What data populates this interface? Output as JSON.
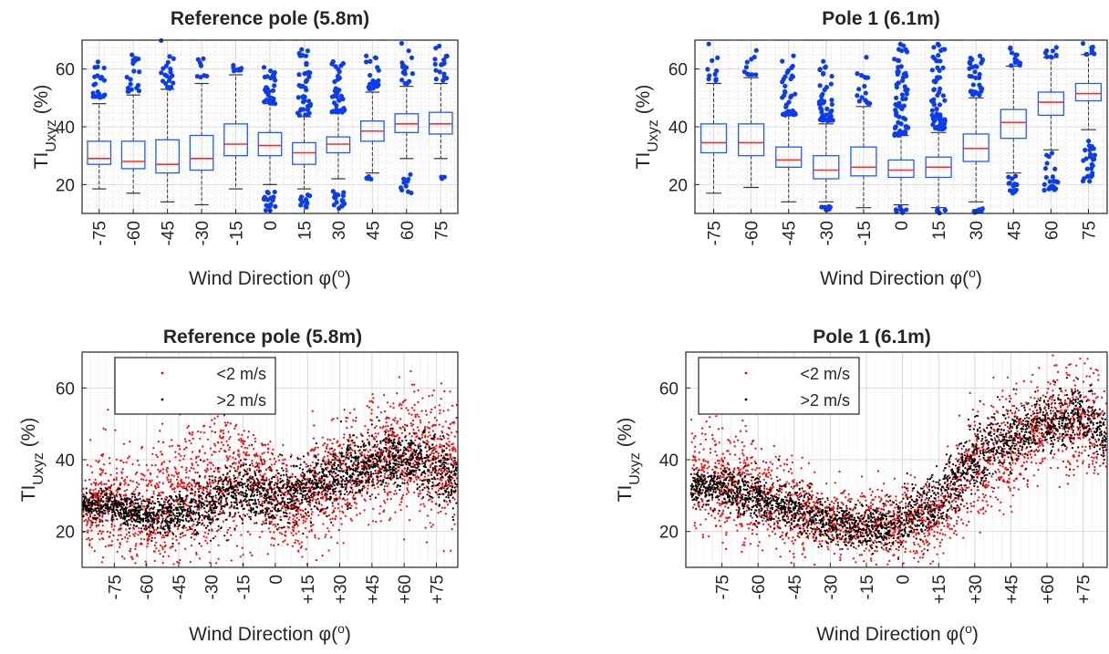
{
  "colors": {
    "box_edge": "#1a5cff",
    "median": "#ff2a2a",
    "outlier": "#0a3cf0",
    "whisker": "#333333",
    "below": "#ff0000",
    "above": "#000000",
    "grid": "#d9d9d9",
    "minor_grid": "#bfbfbf"
  },
  "chart_data": [
    {
      "type": "box",
      "title": "Reference pole (5.8m)",
      "xlabel": "Wind Direction φ(°)",
      "ylabel": "TI_Uxyz (%)",
      "categories": [
        "-75",
        "-60",
        "-45",
        "-30",
        "-15",
        "0",
        "15",
        "30",
        "45",
        "60",
        "75"
      ],
      "yticks": [
        20,
        40,
        60
      ],
      "ylim": [
        10,
        70
      ],
      "grid": true,
      "boxes": [
        {
          "q1": 27,
          "median": 29,
          "q3": 35,
          "low": 18.5,
          "high": 48,
          "outliers": {
            "ranges": [
              [
                50,
                63
              ]
            ],
            "count": 22
          }
        },
        {
          "q1": 25.5,
          "median": 28,
          "q3": 35,
          "low": 17,
          "high": 51,
          "outliers": {
            "ranges": [
              [
                52,
                65
              ]
            ],
            "count": 20
          }
        },
        {
          "q1": 24,
          "median": 27,
          "q3": 35.5,
          "low": 14,
          "high": 53,
          "outliers": {
            "ranges": [
              [
                53,
                70
              ]
            ],
            "count": 20
          }
        },
        {
          "q1": 25,
          "median": 29,
          "q3": 37,
          "low": 13,
          "high": 55,
          "outliers": {
            "ranges": [
              [
                57,
                64
              ]
            ],
            "count": 8
          }
        },
        {
          "q1": 30,
          "median": 34,
          "q3": 41,
          "low": 18.5,
          "high": 58,
          "outliers": {
            "ranges": [
              [
                59,
                63
              ]
            ],
            "count": 8
          }
        },
        {
          "q1": 30,
          "median": 33.5,
          "q3": 38,
          "low": 20,
          "high": 48,
          "outliers": {
            "ranges": [
              [
                48,
                62
              ],
              [
                11,
                19
              ]
            ],
            "count": 48
          }
        },
        {
          "q1": 27,
          "median": 31,
          "q3": 34.5,
          "low": 18.5,
          "high": 43.5,
          "outliers": {
            "ranges": [
              [
                44,
                70
              ],
              [
                12,
                18
              ]
            ],
            "count": 55
          }
        },
        {
          "q1": 31,
          "median": 34,
          "q3": 36.5,
          "low": 22,
          "high": 45,
          "outliers": {
            "ranges": [
              [
                45,
                64
              ],
              [
                11,
                20
              ]
            ],
            "count": 55
          }
        },
        {
          "q1": 35,
          "median": 38.5,
          "q3": 42,
          "low": 24,
          "high": 52,
          "outliers": {
            "ranges": [
              [
                53,
                66
              ],
              [
                21,
                23
              ]
            ],
            "count": 24
          }
        },
        {
          "q1": 38,
          "median": 41,
          "q3": 44.5,
          "low": 29,
          "high": 54,
          "outliers": {
            "ranges": [
              [
                55,
                69
              ],
              [
                17,
                26
              ]
            ],
            "count": 26
          }
        },
        {
          "q1": 37.5,
          "median": 41,
          "q3": 45,
          "low": 29,
          "high": 55,
          "outliers": {
            "ranges": [
              [
                56,
                68
              ],
              [
                22,
                23
              ]
            ],
            "count": 20
          }
        }
      ]
    },
    {
      "type": "box",
      "title": "Pole 1 (6.1m)",
      "xlabel": "Wind Direction φ(°)",
      "ylabel": "TI_Uxyz (%)",
      "categories": [
        "-75",
        "-60",
        "-45",
        "-30",
        "-15",
        "0",
        "15",
        "30",
        "45",
        "60",
        "75"
      ],
      "yticks": [
        20,
        40,
        60
      ],
      "ylim": [
        10,
        70
      ],
      "grid": true,
      "boxes": [
        {
          "q1": 31,
          "median": 34.5,
          "q3": 41,
          "low": 17,
          "high": 55,
          "outliers": {
            "ranges": [
              [
                56,
                70
              ]
            ],
            "count": 10
          }
        },
        {
          "q1": 30,
          "median": 34.5,
          "q3": 41,
          "low": 19,
          "high": 57,
          "outliers": {
            "ranges": [
              [
                58,
                67
              ]
            ],
            "count": 10
          }
        },
        {
          "q1": 26,
          "median": 28.5,
          "q3": 33,
          "low": 14,
          "high": 44,
          "outliers": {
            "ranges": [
              [
                44,
                65
              ]
            ],
            "count": 40
          }
        },
        {
          "q1": 22,
          "median": 25,
          "q3": 30,
          "low": 14,
          "high": 41,
          "outliers": {
            "ranges": [
              [
                42,
                63
              ],
              [
                11,
                13
              ]
            ],
            "count": 55
          }
        },
        {
          "q1": 23,
          "median": 26,
          "q3": 33,
          "low": 12,
          "high": 47,
          "outliers": {
            "ranges": [
              [
                48,
                66
              ]
            ],
            "count": 16
          }
        },
        {
          "q1": 22.5,
          "median": 25,
          "q3": 28.5,
          "low": 13,
          "high": 37,
          "outliers": {
            "ranges": [
              [
                37,
                69
              ],
              [
                10,
                13
              ]
            ],
            "count": 70
          }
        },
        {
          "q1": 22.5,
          "median": 26,
          "q3": 29.5,
          "low": 12,
          "high": 38,
          "outliers": {
            "ranges": [
              [
                39,
                69
              ],
              [
                10,
                12
              ]
            ],
            "count": 70
          }
        },
        {
          "q1": 28,
          "median": 32.5,
          "q3": 37.5,
          "low": 14,
          "high": 50,
          "outliers": {
            "ranges": [
              [
                51,
                66
              ],
              [
                10,
                13
              ]
            ],
            "count": 40
          }
        },
        {
          "q1": 36,
          "median": 41.5,
          "q3": 46,
          "low": 24,
          "high": 61,
          "outliers": {
            "ranges": [
              [
                61,
                68
              ],
              [
                17,
                24
              ]
            ],
            "count": 26
          }
        },
        {
          "q1": 44,
          "median": 48.5,
          "q3": 52,
          "low": 32,
          "high": 64,
          "outliers": {
            "ranges": [
              [
                64,
                68
              ],
              [
                18,
                32
              ]
            ],
            "count": 30
          }
        },
        {
          "q1": 49,
          "median": 51.5,
          "q3": 55,
          "low": 39,
          "high": 65,
          "outliers": {
            "ranges": [
              [
                65,
                69
              ],
              [
                21,
                37
              ]
            ],
            "count": 34
          }
        }
      ]
    },
    {
      "type": "scatter",
      "title": "Reference pole (5.8m)",
      "xlabel": "Wind Direction φ(°)",
      "ylabel": "TI_Uxyz (%)",
      "xticks": [
        -75,
        -60,
        -45,
        -30,
        -15,
        0,
        15,
        30,
        45,
        60,
        75
      ],
      "xticklabels": [
        "-75",
        "-60",
        "-45",
        "-30",
        "-15",
        "0",
        "+15",
        "+30",
        "+45",
        "+60",
        "+75"
      ],
      "yticks": [
        20,
        40,
        60
      ],
      "xlim": [
        -90,
        85
      ],
      "ylim": [
        10,
        70
      ],
      "grid": true,
      "legend": {
        "position": "top-left"
      },
      "series": [
        {
          "name": "<2 m/s",
          "color": "#ff0000",
          "trend": [
            [
              -90,
              26,
              5
            ],
            [
              -75,
              28,
              8
            ],
            [
              -60,
              24,
              8
            ],
            [
              -45,
              30,
              10
            ],
            [
              -30,
              34,
              10
            ],
            [
              -15,
              36,
              10
            ],
            [
              0,
              30,
              7
            ],
            [
              10,
              26,
              6
            ],
            [
              15,
              30,
              8
            ],
            [
              30,
              36,
              8
            ],
            [
              45,
              40,
              8
            ],
            [
              60,
              42,
              8
            ],
            [
              75,
              40,
              9
            ],
            [
              85,
              40,
              9
            ]
          ],
          "count": 2600
        },
        {
          "name": ">2 m/s",
          "color": "#000000",
          "trend": [
            [
              -90,
              27,
              2
            ],
            [
              -75,
              27,
              2
            ],
            [
              -60,
              24,
              2.5
            ],
            [
              -45,
              25,
              3
            ],
            [
              -30,
              28,
              4
            ],
            [
              -15,
              32,
              4
            ],
            [
              0,
              29,
              4
            ],
            [
              15,
              32,
              4
            ],
            [
              30,
              36,
              4
            ],
            [
              45,
              39,
              4
            ],
            [
              60,
              41,
              4
            ],
            [
              75,
              37,
              4
            ],
            [
              85,
              35,
              4
            ]
          ],
          "count": 2400
        }
      ]
    },
    {
      "type": "scatter",
      "title": "Pole 1 (6.1m)",
      "xlabel": "Wind Direction φ(°)",
      "ylabel": "TI_Uxyz (%)",
      "xticks": [
        -75,
        -60,
        -45,
        -30,
        -15,
        0,
        15,
        30,
        45,
        60,
        75
      ],
      "xticklabels": [
        "-75",
        "-60",
        "-45",
        "-30",
        "-15",
        "0",
        "+15",
        "+30",
        "+45",
        "+60",
        "+75"
      ],
      "yticks": [
        20,
        40,
        60
      ],
      "xlim": [
        -90,
        85
      ],
      "ylim": [
        10,
        70
      ],
      "grid": true,
      "legend": {
        "position": "top-left"
      },
      "series": [
        {
          "name": "<2 m/s",
          "color": "#ff0000",
          "trend": [
            [
              -88,
              36,
              7
            ],
            [
              -75,
              34,
              8
            ],
            [
              -60,
              30,
              8
            ],
            [
              -45,
              26,
              6
            ],
            [
              -30,
              23,
              5
            ],
            [
              -15,
              22,
              5
            ],
            [
              0,
              22,
              5
            ],
            [
              15,
              24,
              6
            ],
            [
              30,
              38,
              8
            ],
            [
              45,
              44,
              8
            ],
            [
              60,
              50,
              7
            ],
            [
              75,
              52,
              7
            ],
            [
              85,
              48,
              7
            ]
          ],
          "count": 2400
        },
        {
          "name": ">2 m/s",
          "color": "#000000",
          "trend": [
            [
              -88,
              32,
              2
            ],
            [
              -75,
              32,
              3
            ],
            [
              -60,
              29,
              3
            ],
            [
              -45,
              26,
              3
            ],
            [
              -30,
              22,
              3
            ],
            [
              -15,
              21,
              3
            ],
            [
              0,
              23,
              4
            ],
            [
              15,
              28,
              4
            ],
            [
              30,
              40,
              5
            ],
            [
              45,
              46,
              4
            ],
            [
              60,
              50,
              4
            ],
            [
              75,
              53,
              4
            ],
            [
              85,
              45,
              4
            ]
          ],
          "count": 2400
        }
      ]
    }
  ]
}
